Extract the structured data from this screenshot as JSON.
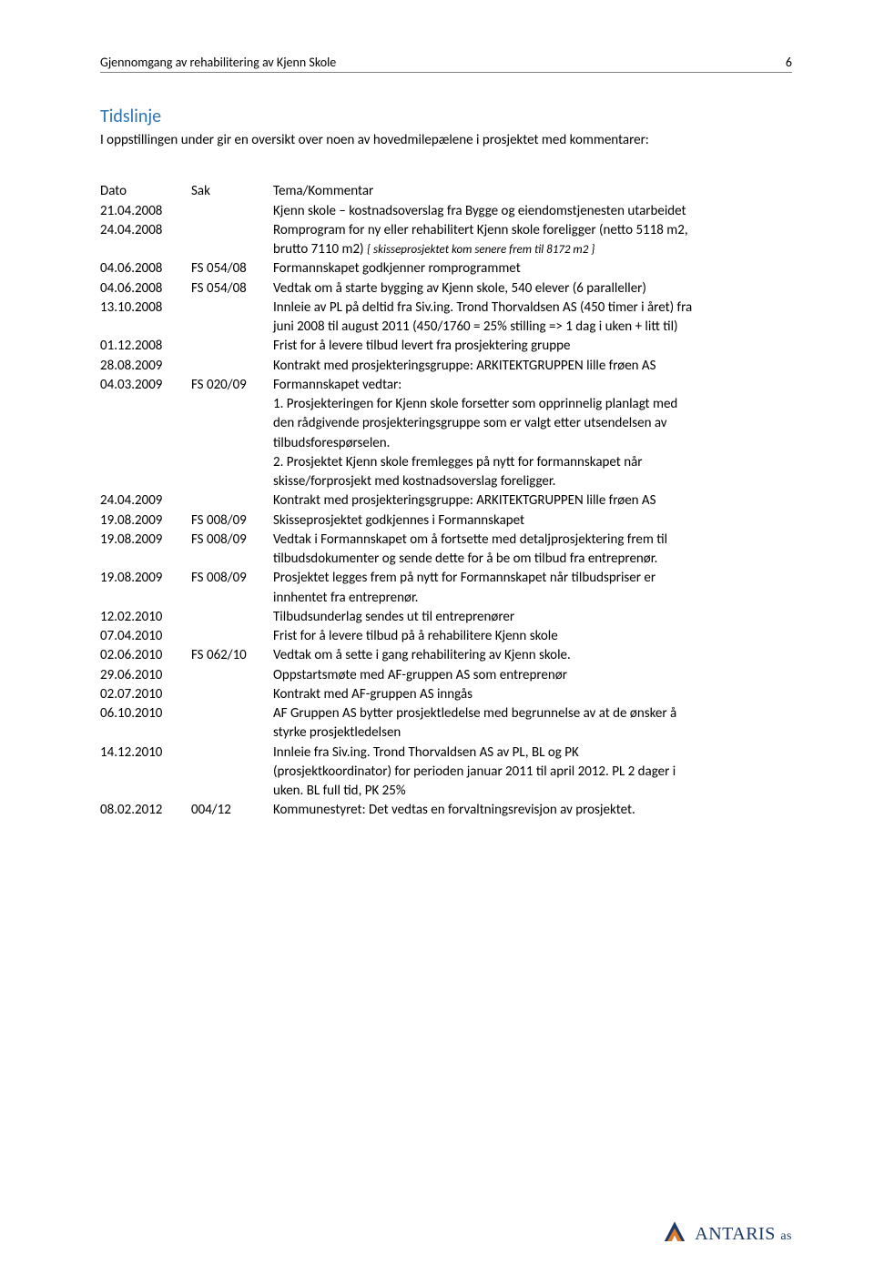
{
  "header": {
    "title": "Gjennomgang av rehabilitering av Kjenn Skole",
    "page_number": "6"
  },
  "section": {
    "title": "Tidslinje",
    "intro": "I oppstillingen under gir en oversikt over noen av hovedmilepælene i prosjektet med kommentarer:"
  },
  "columns": {
    "date": "Dato",
    "sak": "Sak",
    "text": "Tema/Kommentar"
  },
  "rows": [
    {
      "date": "21.04.2008",
      "sak": "",
      "lines": [
        "Kjenn skole – kostnadsoverslag fra Bygge og eiendomstjenesten utarbeidet"
      ]
    },
    {
      "date": "24.04.2008",
      "sak": "",
      "lines": [
        "Romprogram for ny eller rehabilitert Kjenn skole foreligger (netto 5118 m2,"
      ]
    },
    {
      "date": "",
      "sak": "",
      "lines": [
        "brutto 7110 m2) "
      ],
      "tail_italic": "{ skisseprosjektet kom senere frem til 8172 m2 }"
    },
    {
      "date": "04.06.2008",
      "sak": "FS 054/08",
      "lines": [
        "Formannskapet godkjenner romprogrammet"
      ]
    },
    {
      "date": "04.06.2008",
      "sak": "FS 054/08",
      "lines": [
        "Vedtak om å starte bygging av Kjenn skole, 540 elever (6 paralleller)"
      ]
    },
    {
      "date": "13.10.2008",
      "sak": "",
      "lines": [
        "Innleie av PL på deltid fra Siv.ing. Trond Thorvaldsen AS (450 timer i året) fra",
        "juni 2008 til august 2011 (450/1760 = 25% stilling => 1 dag i uken + litt til)"
      ]
    },
    {
      "date": "01.12.2008",
      "sak": "",
      "lines": [
        "Frist for å levere tilbud levert fra prosjektering gruppe"
      ]
    },
    {
      "date": "28.08.2009",
      "sak": "",
      "lines": [
        "Kontrakt med prosjekteringsgruppe: ARKITEKTGRUPPEN lille frøen AS"
      ]
    },
    {
      "date": "04.03.2009",
      "sak": "FS 020/09",
      "lines": [
        "Formannskapet vedtar:"
      ]
    },
    {
      "date": "",
      "sak": "",
      "lines": [
        " 1. Prosjekteringen for Kjenn skole forsetter som opprinnelig planlagt med",
        "den rådgivende prosjekteringsgruppe som er valgt etter utsendelsen av",
        "tilbudsforespørselen.",
        " 2. Prosjektet Kjenn skole fremlegges på nytt for formannskapet når",
        "skisse/forprosjekt med kostnadsoverslag foreligger."
      ]
    },
    {
      "date": "24.04.2009",
      "sak": "",
      "lines": [
        "Kontrakt med prosjekteringsgruppe: ARKITEKTGRUPPEN lille frøen AS"
      ]
    },
    {
      "date": "19.08.2009",
      "sak": "FS 008/09",
      "lines": [
        "Skisseprosjektet godkjennes i Formannskapet"
      ]
    },
    {
      "date": "19.08.2009",
      "sak": "FS 008/09",
      "lines": [
        "Vedtak i Formannskapet om å fortsette med detaljprosjektering frem til",
        "tilbudsdokumenter og sende dette for å be om tilbud fra entreprenør."
      ]
    },
    {
      "date": "19.08.2009",
      "sak": "FS 008/09",
      "lines": [
        "Prosjektet legges frem på nytt for Formannskapet når tilbudspriser er",
        "innhentet fra entreprenør."
      ]
    },
    {
      "date": "12.02.2010",
      "sak": "",
      "lines": [
        "Tilbudsunderlag sendes ut til entreprenører"
      ]
    },
    {
      "date": "07.04.2010",
      "sak": "",
      "lines": [
        "Frist for å levere tilbud på å rehabilitere Kjenn skole"
      ]
    },
    {
      "date": "02.06.2010",
      "sak": "FS 062/10",
      "lines": [
        "Vedtak om å sette i gang rehabilitering av Kjenn skole."
      ]
    },
    {
      "date": "29.06.2010",
      "sak": "",
      "lines": [
        "Oppstartsmøte med AF-gruppen AS som entreprenør"
      ]
    },
    {
      "date": "02.07.2010",
      "sak": "",
      "lines": [
        "Kontrakt med AF-gruppen AS inngås"
      ]
    },
    {
      "date": "06.10.2010",
      "sak": "",
      "lines": [
        "AF Gruppen AS bytter prosjektledelse med begrunnelse av at de ønsker å",
        "styrke prosjektledelsen"
      ]
    },
    {
      "date": "14.12.2010",
      "sak": "",
      "lines": [
        "Innleie fra Siv.ing. Trond Thorvaldsen AS av PL, BL og PK",
        "(prosjektkoordinator) for perioden januar 2011 til april 2012. PL 2 dager i",
        "uken. BL full tid, PK 25%"
      ]
    },
    {
      "date": "08.02.2012",
      "sak": "004/12",
      "lines": [
        "Kommunestyret: Det vedtas en forvaltningsrevisjon av prosjektet."
      ]
    }
  ],
  "footer": {
    "company": "ANTARIS",
    "suffix": "as",
    "logo_colors": {
      "blue": "#1b3a6b",
      "orange": "#d97b2b"
    }
  },
  "style": {
    "body_font": "Calibri, Arial, sans-serif",
    "section_title_color": "#2e74b5",
    "text_color": "#000000",
    "background": "#ffffff",
    "header_rule_color": "#808080",
    "font_size_body": 15,
    "font_size_header": 14,
    "font_size_title": 20
  }
}
